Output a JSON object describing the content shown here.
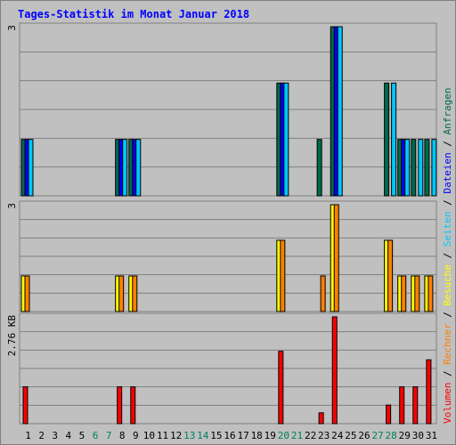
{
  "chart_data": {
    "type": "bar",
    "title": "Tages-Statistik im Monat Januar 2018",
    "categories": [
      "1",
      "2",
      "3",
      "4",
      "5",
      "6",
      "7",
      "8",
      "9",
      "10",
      "11",
      "12",
      "13",
      "14",
      "15",
      "16",
      "17",
      "18",
      "19",
      "20",
      "21",
      "22",
      "23",
      "24",
      "25",
      "26",
      "27",
      "28",
      "29",
      "30",
      "31"
    ],
    "weekend_days": [
      "6",
      "7",
      "13",
      "14",
      "20",
      "21",
      "27",
      "28"
    ],
    "panels": [
      {
        "id": "requests",
        "max_label": "3",
        "ylim": [
          0,
          3
        ],
        "series": [
          {
            "name": "Anfragen",
            "color": "#006a4e",
            "values": [
              1,
              0,
              0,
              0,
              0,
              0,
              0,
              1,
              1,
              0,
              0,
              0,
              0,
              0,
              0,
              0,
              0,
              0,
              0,
              2,
              0,
              0,
              1,
              3,
              0,
              0,
              0,
              2,
              1,
              1,
              1
            ]
          },
          {
            "name": "Dateien",
            "color": "#0000ff",
            "values": [
              1,
              0,
              0,
              0,
              0,
              0,
              0,
              1,
              1,
              0,
              0,
              0,
              0,
              0,
              0,
              0,
              0,
              0,
              0,
              2,
              0,
              0,
              0,
              3,
              0,
              0,
              0,
              0,
              1,
              0,
              0
            ]
          },
          {
            "name": "Seiten",
            "color": "#00c8ff",
            "values": [
              1,
              0,
              0,
              0,
              0,
              0,
              0,
              1,
              1,
              0,
              0,
              0,
              0,
              0,
              0,
              0,
              0,
              0,
              0,
              2,
              0,
              0,
              0,
              3,
              0,
              0,
              0,
              2,
              1,
              1,
              1
            ]
          }
        ]
      },
      {
        "id": "visits",
        "max_label": "3",
        "ylim": [
          0,
          3
        ],
        "series": [
          {
            "name": "Besuche",
            "color": "#ffff00",
            "values": [
              1,
              0,
              0,
              0,
              0,
              0,
              0,
              1,
              1,
              0,
              0,
              0,
              0,
              0,
              0,
              0,
              0,
              0,
              0,
              2,
              0,
              0,
              0,
              3,
              0,
              0,
              0,
              2,
              1,
              1,
              1
            ]
          },
          {
            "name": "Rechner",
            "color": "#ff8000",
            "values": [
              1,
              0,
              0,
              0,
              0,
              0,
              0,
              1,
              1,
              0,
              0,
              0,
              0,
              0,
              0,
              0,
              0,
              0,
              0,
              2,
              0,
              0,
              1,
              3,
              0,
              0,
              0,
              2,
              1,
              1,
              1
            ]
          }
        ]
      },
      {
        "id": "volume",
        "max_label": "2.76 KB",
        "ylim": [
          0,
          2.76
        ],
        "series": [
          {
            "name": "Volumen",
            "color": "#ff0000",
            "values": [
              0.95,
              0,
              0,
              0,
              0,
              0,
              0,
              0.95,
              0.95,
              0,
              0,
              0,
              0,
              0,
              0,
              0,
              0,
              0,
              0,
              1.87,
              0,
              0,
              0.28,
              2.76,
              0,
              0,
              0,
              0.48,
              0.95,
              0.95,
              1.65
            ]
          }
        ]
      }
    ],
    "legend": [
      "Volumen",
      "Rechner",
      "Besuche",
      "Seiten",
      "Dateien",
      "Anfragen"
    ],
    "legend_separator": "/"
  },
  "colors": {
    "background": "#c0c0c0",
    "grid": "#808080",
    "title": "#0000ff",
    "weekday": "#000000",
    "weekend": "#00805c"
  }
}
